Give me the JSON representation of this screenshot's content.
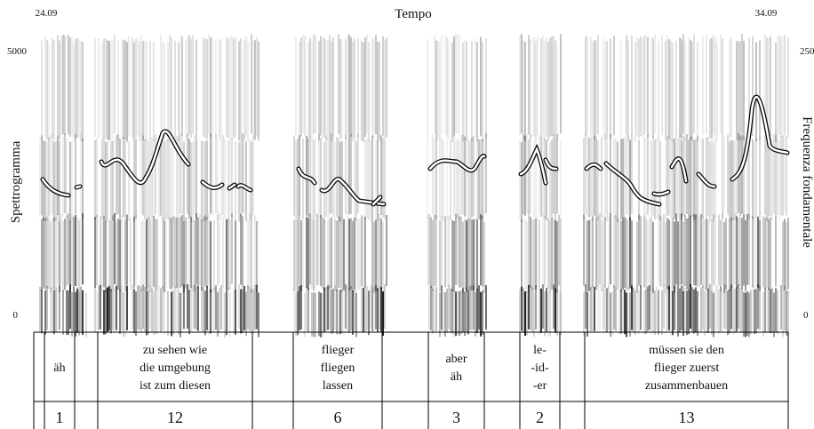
{
  "header": {
    "start_time": "24.09",
    "title": "Tempo",
    "end_time": "34.09"
  },
  "left_axis": {
    "label": "Spettrogramma",
    "ticks": [
      "5000",
      "0"
    ]
  },
  "right_axis": {
    "label": "Frequenza fondamentale",
    "ticks": [
      "250",
      "0"
    ]
  },
  "tiers": {
    "words": [
      {
        "lines": [
          "äh"
        ]
      },
      {
        "lines": [
          "zu sehen wie",
          "die umgebung",
          "ist zum diesen"
        ]
      },
      {
        "lines": [
          "flieger",
          "fliegen",
          "lassen"
        ]
      },
      {
        "lines": [
          "aber",
          "äh"
        ]
      },
      {
        "lines": [
          "le-",
          "-id-",
          "-er"
        ]
      },
      {
        "lines": [
          "müssen sie den",
          "flieger zuerst",
          "zusammenbauen"
        ]
      }
    ],
    "counts": [
      "1",
      "12",
      "6",
      "3",
      "2",
      "13"
    ]
  }
}
